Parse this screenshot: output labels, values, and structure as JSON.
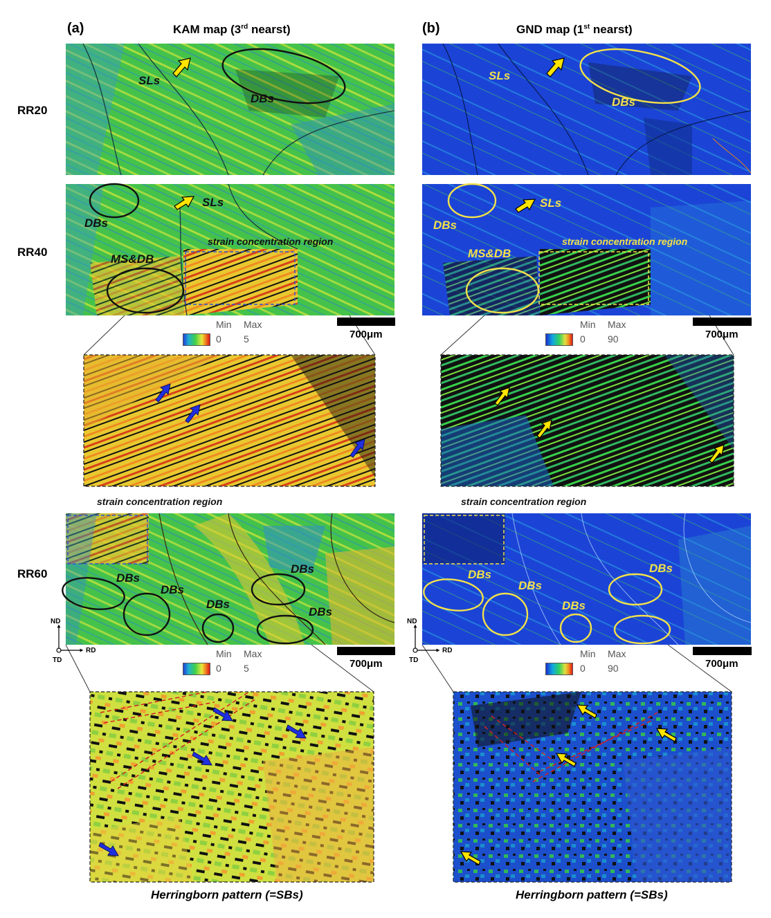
{
  "figure": {
    "panel_a": {
      "label": "(a)",
      "title": "KAM map (3",
      "title_sup": "rd",
      "title_end": " nearst)"
    },
    "panel_b": {
      "label": "(b)",
      "title": "GND map (1",
      "title_sup": "st",
      "title_end": " nearst)"
    },
    "rows": [
      "RR20",
      "RR40",
      "RR60"
    ],
    "annotations": {
      "sls": "SLs",
      "dbs": "DBs",
      "msdb": "MS&DB",
      "strain_region": "strain concentration region"
    },
    "colorbar": {
      "min_label": "Min",
      "max_label": "Max",
      "kam_min": "0",
      "kam_max": "5",
      "gnd_min": "0",
      "gnd_max": "90"
    },
    "scale": "700μm",
    "axes": {
      "nd": "ND",
      "rd": "RD",
      "td": "TD"
    },
    "caption": "Herringborn pattern (=SBs)",
    "colors": {
      "kam_base": "#3cc04a",
      "gnd_base": "#1b44d6",
      "black_ellipse": "#111111",
      "yellow_ellipse": "#f3e14a",
      "blue_arrow": "#2030e0",
      "yellow_arrow": "#ffe400"
    }
  }
}
